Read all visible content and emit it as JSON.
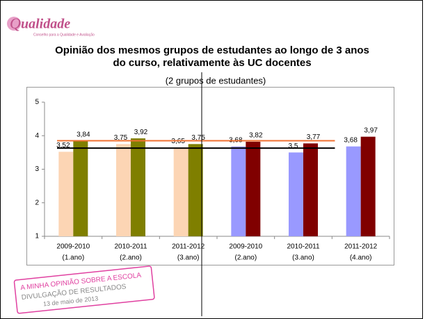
{
  "header": {
    "logo": "ualidade",
    "logo_letter": "Q",
    "logo_subtitle": "Conselho para a Qualidade e Avaliação"
  },
  "chart_data": {
    "type": "bar",
    "title": [
      "Opinião dos mesmos grupos de estudantes ao longo de 3 anos",
      "do curso, relativamente às UC  docentes"
    ],
    "subtitle": "(2 grupos de estudantes)",
    "categories": [
      [
        "2009-2010",
        "(1.ano)"
      ],
      [
        "2010-2011",
        "(2.ano)"
      ],
      [
        "2011-2012",
        "(3.ano)"
      ],
      [
        "2009-2010",
        "(2.ano)"
      ],
      [
        "2010-2011",
        "(3.ano)"
      ],
      [
        "2011-2012",
        "(4.ano)"
      ]
    ],
    "series": [
      {
        "colors": [
          "#fcd5b4",
          "#fcd5b4",
          "#fcd5b4",
          "#9999ff",
          "#9999ff",
          "#9999ff"
        ],
        "values": [
          3.52,
          3.75,
          3.65,
          3.68,
          3.5,
          3.68
        ],
        "value_labels": [
          "3,52",
          "3,75",
          "3,65",
          "3,68",
          "3,5",
          "3,68"
        ]
      },
      {
        "colors": [
          "#7f7f00",
          "#7f7f00",
          "#7f7f00",
          "#800000",
          "#800000",
          "#800000"
        ],
        "values": [
          3.84,
          3.92,
          3.75,
          3.82,
          3.77,
          3.97
        ],
        "value_labels": [
          "3,84",
          "3,92",
          "3,75",
          "3,82",
          "3,77",
          "3,97"
        ]
      }
    ],
    "reference_lines": [
      {
        "color": "#f07030",
        "value": 3.85
      },
      {
        "color": "#000000",
        "value": 3.63
      }
    ],
    "ylim": [
      1,
      5
    ],
    "yticks": [
      1,
      2,
      3,
      4,
      5
    ]
  },
  "stamp": {
    "line1": "A MINHA OPINIÃO SOBRE A ESCOLA",
    "line2": "DIVULGAÇÃO DE RESULTADOS",
    "line3": "13 de maio de 2013"
  }
}
